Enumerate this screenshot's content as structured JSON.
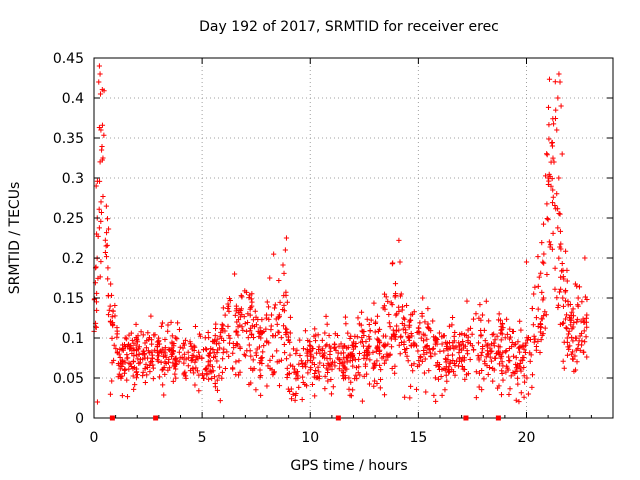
{
  "chart_data": {
    "type": "scatter",
    "title": "Day 192 of 2017, SRMTID for receiver erec",
    "xlabel": "GPS time / hours",
    "ylabel": "SRMTID / TECUs",
    "xlim": [
      0,
      24
    ],
    "ylim": [
      0,
      0.45
    ],
    "grid": true,
    "marker": "+",
    "color": "#ff0000",
    "x_ticks": [
      {
        "value": 0,
        "label": "0"
      },
      {
        "value": 5,
        "label": "5"
      },
      {
        "value": 10,
        "label": "10"
      },
      {
        "value": 15,
        "label": "15"
      },
      {
        "value": 20,
        "label": "20"
      }
    ],
    "y_ticks": [
      {
        "value": 0,
        "label": "0"
      },
      {
        "value": 0.05,
        "label": "0.05"
      },
      {
        "value": 0.1,
        "label": "0.1"
      },
      {
        "value": 0.15,
        "label": "0.15"
      },
      {
        "value": 0.2,
        "label": "0.2"
      },
      {
        "value": 0.25,
        "label": "0.25"
      },
      {
        "value": 0.3,
        "label": "0.3"
      },
      {
        "value": 0.35,
        "label": "0.35"
      },
      {
        "value": 0.4,
        "label": "0.4"
      },
      {
        "value": 0.45,
        "label": "0.45"
      }
    ],
    "envelope": [
      {
        "t": 0.0,
        "m": 0.15,
        "s": 0.04
      },
      {
        "t": 0.2,
        "m": 0.22,
        "s": 0.08
      },
      {
        "t": 0.35,
        "m": 0.33,
        "s": 0.07
      },
      {
        "t": 0.5,
        "m": 0.27,
        "s": 0.07
      },
      {
        "t": 0.6,
        "m": 0.2,
        "s": 0.04
      },
      {
        "t": 0.8,
        "m": 0.12,
        "s": 0.03
      },
      {
        "t": 1.2,
        "m": 0.075,
        "s": 0.02
      },
      {
        "t": 2.5,
        "m": 0.08,
        "s": 0.02
      },
      {
        "t": 3.5,
        "m": 0.08,
        "s": 0.022
      },
      {
        "t": 5.5,
        "m": 0.068,
        "s": 0.018
      },
      {
        "t": 6.0,
        "m": 0.095,
        "s": 0.03
      },
      {
        "t": 7.0,
        "m": 0.105,
        "s": 0.03
      },
      {
        "t": 8.0,
        "m": 0.1,
        "s": 0.03
      },
      {
        "t": 8.7,
        "m": 0.12,
        "s": 0.04
      },
      {
        "t": 9.2,
        "m": 0.06,
        "s": 0.02
      },
      {
        "t": 10.2,
        "m": 0.07,
        "s": 0.02
      },
      {
        "t": 11.5,
        "m": 0.075,
        "s": 0.02
      },
      {
        "t": 13.0,
        "m": 0.085,
        "s": 0.022
      },
      {
        "t": 14.0,
        "m": 0.11,
        "s": 0.035
      },
      {
        "t": 15.0,
        "m": 0.09,
        "s": 0.025
      },
      {
        "t": 16.5,
        "m": 0.075,
        "s": 0.022
      },
      {
        "t": 17.5,
        "m": 0.085,
        "s": 0.025
      },
      {
        "t": 19.0,
        "m": 0.08,
        "s": 0.022
      },
      {
        "t": 19.7,
        "m": 0.06,
        "s": 0.025
      },
      {
        "t": 20.2,
        "m": 0.09,
        "s": 0.03
      },
      {
        "t": 20.8,
        "m": 0.15,
        "s": 0.05
      },
      {
        "t": 21.0,
        "m": 0.25,
        "s": 0.06
      },
      {
        "t": 21.3,
        "m": 0.33,
        "s": 0.07
      },
      {
        "t": 21.6,
        "m": 0.16,
        "s": 0.05
      },
      {
        "t": 22.0,
        "m": 0.1,
        "s": 0.03
      },
      {
        "t": 22.8,
        "m": 0.11,
        "s": 0.03
      }
    ],
    "highlights": [
      {
        "t": 0.25,
        "y": 0.44
      },
      {
        "t": 0.28,
        "y": 0.43
      },
      {
        "t": 0.22,
        "y": 0.42
      },
      {
        "t": 0.3,
        "y": 0.405
      },
      {
        "t": 0.32,
        "y": 0.36
      },
      {
        "t": 0.35,
        "y": 0.335
      },
      {
        "t": 0.1,
        "y": 0.29
      },
      {
        "t": 0.15,
        "y": 0.25
      },
      {
        "t": 21.5,
        "y": 0.43
      },
      {
        "t": 21.55,
        "y": 0.42
      },
      {
        "t": 21.45,
        "y": 0.4
      },
      {
        "t": 21.6,
        "y": 0.39
      },
      {
        "t": 21.4,
        "y": 0.36
      },
      {
        "t": 21.2,
        "y": 0.34
      },
      {
        "t": 21.65,
        "y": 0.33
      },
      {
        "t": 21.0,
        "y": 0.3
      },
      {
        "t": 8.9,
        "y": 0.225
      },
      {
        "t": 8.85,
        "y": 0.21
      },
      {
        "t": 14.1,
        "y": 0.222
      },
      {
        "t": 14.15,
        "y": 0.195
      },
      {
        "t": 15.2,
        "y": 0.15
      },
      {
        "t": 20.0,
        "y": 0.195
      },
      {
        "t": 22.7,
        "y": 0.2
      },
      {
        "t": 6.5,
        "y": 0.18
      }
    ],
    "gaps_on_axis": [
      0.85,
      2.85,
      11.3,
      17.2,
      18.7
    ]
  }
}
